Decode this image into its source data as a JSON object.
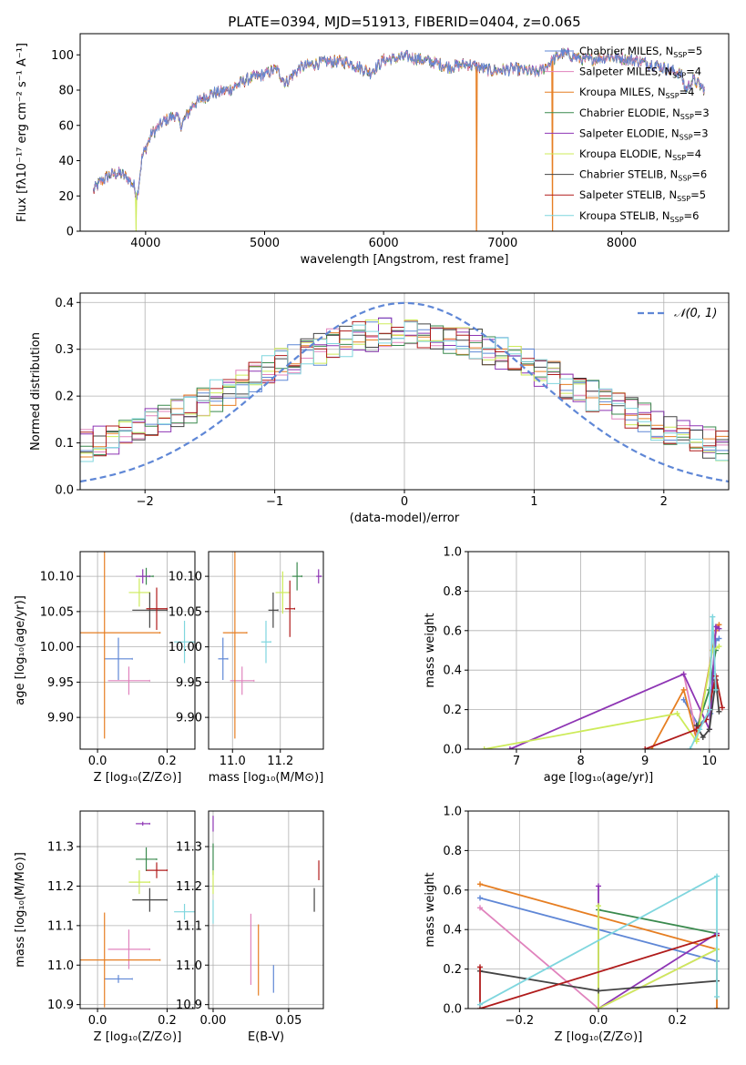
{
  "figure_title": "PLATE=0394, MJD=51913, FIBERID=0404, z=0.065",
  "colors": {
    "Chabrier MILES": "#5f87d6",
    "Salpeter MILES": "#e083bd",
    "Kroupa MILES": "#e67e22",
    "Chabrier ELODIE": "#3a8a4e",
    "Salpeter ELODIE": "#8e35b4",
    "Kroupa ELODIE": "#cdeb5a",
    "Chabrier STELIB": "#444444",
    "Salpeter STELIB": "#b01b1b",
    "Kroupa STELIB": "#7fd6de"
  },
  "chart_data": [
    {
      "id": "spectrum",
      "type": "line",
      "xlabel": "wavelength [Angstrom, rest frame]",
      "ylabel": "Flux [fλ10⁻¹⁷ erg cm⁻² s⁻¹ A⁻¹]",
      "xlim": [
        3450,
        8900
      ],
      "ylim": [
        0,
        112
      ],
      "xticks": [
        4000,
        5000,
        6000,
        7000,
        8000
      ],
      "yticks": [
        0,
        20,
        40,
        60,
        80,
        100
      ],
      "grid": false,
      "legend": "top-right",
      "continuum": [
        [
          3550,
          22
        ],
        [
          3620,
          28
        ],
        [
          3700,
          32
        ],
        [
          3780,
          33
        ],
        [
          3850,
          30
        ],
        [
          3900,
          26
        ],
        [
          3930,
          20
        ],
        [
          3970,
          42
        ],
        [
          4050,
          55
        ],
        [
          4150,
          62
        ],
        [
          4250,
          66
        ],
        [
          4300,
          60
        ],
        [
          4400,
          72
        ],
        [
          4550,
          78
        ],
        [
          4700,
          80
        ],
        [
          4850,
          86
        ],
        [
          5000,
          89
        ],
        [
          5100,
          92
        ],
        [
          5175,
          84
        ],
        [
          5300,
          93
        ],
        [
          5500,
          96
        ],
        [
          5700,
          96
        ],
        [
          5890,
          90
        ],
        [
          6000,
          97
        ],
        [
          6200,
          99
        ],
        [
          6400,
          96
        ],
        [
          6560,
          93
        ],
        [
          6700,
          95
        ],
        [
          6900,
          91
        ],
        [
          7100,
          92
        ],
        [
          7300,
          90
        ],
        [
          7500,
          101
        ],
        [
          7700,
          97
        ],
        [
          7900,
          99
        ],
        [
          8100,
          97
        ],
        [
          8300,
          94
        ],
        [
          8500,
          89
        ],
        [
          8540,
          80
        ],
        [
          8600,
          86
        ],
        [
          8700,
          80
        ]
      ],
      "series": [
        {
          "name": "Chabrier MILES",
          "nssp": "5"
        },
        {
          "name": "Salpeter MILES",
          "nssp": "4"
        },
        {
          "name": "Kroupa MILES",
          "nssp": "4"
        },
        {
          "name": "Chabrier ELODIE",
          "nssp": "3"
        },
        {
          "name": "Salpeter ELODIE",
          "nssp": "3"
        },
        {
          "name": "Kroupa ELODIE",
          "nssp": "4"
        },
        {
          "name": "Chabrier STELIB",
          "nssp": "6"
        },
        {
          "name": "Salpeter STELIB",
          "nssp": "5"
        },
        {
          "name": "Kroupa STELIB",
          "nssp": "6"
        }
      ],
      "dropouts": [
        {
          "name": "Kroupa ELODIE",
          "x": 3920
        },
        {
          "name": "Kroupa MILES",
          "x": 6780
        },
        {
          "name": "Kroupa MILES",
          "x": 7420
        }
      ]
    },
    {
      "id": "residuals",
      "type": "step",
      "xlabel": "(data-model)/error",
      "ylabel": "Normed distribution",
      "xlim": [
        -2.5,
        2.5
      ],
      "ylim": [
        0,
        0.42
      ],
      "xticks": [
        -2,
        -1,
        0,
        1,
        2
      ],
      "yticks": [
        0.0,
        0.1,
        0.2,
        0.3,
        0.4
      ],
      "grid": true,
      "legend": "top-right",
      "normal_label": "𝒩(0, 1)",
      "normal_color": "#5f87d6",
      "bins": 50
    },
    {
      "id": "age_vs_Z",
      "type": "errorbar",
      "xlabel": "Z [log₁₀(Z/Z⊙)]",
      "ylabel": "age  [log₁₀(age/yr)]",
      "xlim": [
        -0.05,
        0.28
      ],
      "ylim": [
        9.855,
        10.135
      ],
      "xticks": [
        0.0,
        0.2
      ],
      "yticks": [
        9.9,
        9.95,
        10.0,
        10.05,
        10.1
      ],
      "grid": true,
      "points": [
        {
          "name": "Chabrier MILES",
          "x": 0.06,
          "y": 9.983,
          "xerr": 0.04,
          "yerr": 0.03
        },
        {
          "name": "Salpeter MILES",
          "x": 0.09,
          "y": 9.952,
          "xerr": 0.06,
          "yerr": 0.02
        },
        {
          "name": "Kroupa MILES",
          "x": 0.02,
          "y": 10.02,
          "xerr": 0.16,
          "yerr": 0.15
        },
        {
          "name": "Chabrier ELODIE",
          "x": 0.14,
          "y": 10.1,
          "xerr": 0.02,
          "yerr": 0.012
        },
        {
          "name": "Salpeter ELODIE",
          "x": 0.13,
          "y": 10.1,
          "xerr": 0.02,
          "yerr": 0.01
        },
        {
          "name": "Kroupa ELODIE",
          "x": 0.12,
          "y": 10.077,
          "xerr": 0.03,
          "yerr": 0.02
        },
        {
          "name": "Chabrier STELIB",
          "x": 0.15,
          "y": 10.052,
          "xerr": 0.05,
          "yerr": 0.025
        },
        {
          "name": "Salpeter STELIB",
          "x": 0.17,
          "y": 10.054,
          "xerr": 0.03,
          "yerr": 0.03
        },
        {
          "name": "Kroupa STELIB",
          "x": 0.25,
          "y": 10.007,
          "xerr": 0.03,
          "yerr": 0.03
        }
      ]
    },
    {
      "id": "age_vs_mass",
      "type": "errorbar",
      "xlabel": "mass [log₁₀(M/M⊙)]",
      "ylabel": "",
      "xlim": [
        10.9,
        11.38
      ],
      "ylim": [
        9.855,
        10.135
      ],
      "xticks": [
        11.0,
        11.2
      ],
      "yticks": [
        9.9,
        9.95,
        10.0,
        10.05,
        10.1
      ],
      "grid": true,
      "points": [
        {
          "name": "Chabrier MILES",
          "x": 10.96,
          "y": 9.983,
          "xerr": 0.02,
          "yerr": 0.03
        },
        {
          "name": "Salpeter MILES",
          "x": 11.04,
          "y": 9.952,
          "xerr": 0.05,
          "yerr": 0.02
        },
        {
          "name": "Kroupa MILES",
          "x": 11.01,
          "y": 10.02,
          "xerr": 0.05,
          "yerr": 0.15
        },
        {
          "name": "Chabrier ELODIE",
          "x": 11.27,
          "y": 10.1,
          "xerr": 0.02,
          "yerr": 0.02
        },
        {
          "name": "Salpeter ELODIE",
          "x": 11.36,
          "y": 10.1,
          "xerr": 0.01,
          "yerr": 0.01
        },
        {
          "name": "Kroupa ELODIE",
          "x": 11.21,
          "y": 10.077,
          "xerr": 0.03,
          "yerr": 0.03
        },
        {
          "name": "Chabrier STELIB",
          "x": 11.17,
          "y": 10.052,
          "xerr": 0.02,
          "yerr": 0.025
        },
        {
          "name": "Salpeter STELIB",
          "x": 11.24,
          "y": 10.054,
          "xerr": 0.02,
          "yerr": 0.04
        },
        {
          "name": "Kroupa STELIB",
          "x": 11.14,
          "y": 10.007,
          "xerr": 0.02,
          "yerr": 0.03
        }
      ]
    },
    {
      "id": "weight_vs_age",
      "type": "line",
      "xlabel": "age  [log₁₀(age/yr)]",
      "ylabel": "mass weight",
      "xlim": [
        6.25,
        10.3
      ],
      "ylim": [
        0,
        1.0
      ],
      "xticks": [
        7,
        8,
        9,
        10
      ],
      "yticks": [
        0.0,
        0.2,
        0.4,
        0.6,
        0.8,
        1.0
      ],
      "grid": true,
      "series": [
        {
          "name": "Chabrier MILES",
          "x": [
            9.6,
            9.83,
            10.02,
            10.1,
            10.15
          ],
          "y": [
            0.25,
            0.12,
            0.18,
            0.55,
            0.56
          ]
        },
        {
          "name": "Salpeter MILES",
          "x": [
            9.6,
            9.8,
            10.05,
            10.12
          ],
          "y": [
            0.38,
            0.08,
            0.5,
            0.62
          ]
        },
        {
          "name": "Kroupa MILES",
          "x": [
            9.1,
            9.6,
            9.8,
            10.1,
            10.15
          ],
          "y": [
            0.0,
            0.3,
            0.05,
            0.6,
            0.63
          ]
        },
        {
          "name": "Chabrier ELODIE",
          "x": [
            9.8,
            10.0,
            10.1
          ],
          "y": [
            0.1,
            0.3,
            0.5
          ]
        },
        {
          "name": "Salpeter ELODIE",
          "x": [
            6.9,
            9.6,
            10.0,
            10.1,
            10.15
          ],
          "y": [
            0.0,
            0.38,
            0.1,
            0.62,
            0.61
          ]
        },
        {
          "name": "Kroupa ELODIE",
          "x": [
            6.5,
            9.5,
            9.8,
            10.05,
            10.15
          ],
          "y": [
            0.0,
            0.18,
            0.04,
            0.5,
            0.52
          ]
        },
        {
          "name": "Chabrier STELIB",
          "x": [
            9.8,
            9.9,
            10.0,
            10.1,
            10.15
          ],
          "y": [
            0.12,
            0.06,
            0.1,
            0.35,
            0.19
          ]
        },
        {
          "name": "Salpeter STELIB",
          "x": [
            9.0,
            9.8,
            9.95,
            10.1,
            10.2
          ],
          "y": [
            0.0,
            0.1,
            0.15,
            0.37,
            0.21
          ]
        },
        {
          "name": "Kroupa STELIB",
          "x": [
            9.7,
            9.85,
            10.0,
            10.05,
            10.1
          ],
          "y": [
            0.0,
            0.1,
            0.2,
            0.67,
            0.3
          ]
        }
      ]
    },
    {
      "id": "mass_vs_Z",
      "type": "errorbar",
      "xlabel": "Z [log₁₀(Z/Z⊙)]",
      "ylabel": "mass [log₁₀(M/M⊙)]",
      "xlim": [
        -0.05,
        0.28
      ],
      "ylim": [
        10.89,
        11.39
      ],
      "xticks": [
        0.0,
        0.2
      ],
      "yticks": [
        10.9,
        11.0,
        11.1,
        11.2,
        11.3
      ],
      "grid": true,
      "points": [
        {
          "name": "Chabrier MILES",
          "x": 0.06,
          "y": 10.965,
          "xerr": 0.04,
          "yerr": 0.01
        },
        {
          "name": "Salpeter MILES",
          "x": 0.09,
          "y": 11.04,
          "xerr": 0.06,
          "yerr": 0.05
        },
        {
          "name": "Kroupa MILES",
          "x": 0.02,
          "y": 11.013,
          "xerr": 0.16,
          "yerr": 0.12
        },
        {
          "name": "Chabrier ELODIE",
          "x": 0.14,
          "y": 11.268,
          "xerr": 0.03,
          "yerr": 0.03
        },
        {
          "name": "Salpeter ELODIE",
          "x": 0.13,
          "y": 11.358,
          "xerr": 0.02,
          "yerr": 0.005
        },
        {
          "name": "Kroupa ELODIE",
          "x": 0.12,
          "y": 11.21,
          "xerr": 0.03,
          "yerr": 0.03
        },
        {
          "name": "Chabrier STELIB",
          "x": 0.15,
          "y": 11.165,
          "xerr": 0.05,
          "yerr": 0.03
        },
        {
          "name": "Salpeter STELIB",
          "x": 0.17,
          "y": 11.24,
          "xerr": 0.03,
          "yerr": 0.02
        },
        {
          "name": "Kroupa STELIB",
          "x": 0.25,
          "y": 11.135,
          "xerr": 0.03,
          "yerr": 0.02
        }
      ]
    },
    {
      "id": "mass_vs_ebv",
      "type": "errorbar",
      "xlabel": "E(B-V)",
      "ylabel": "",
      "xlim": [
        -0.003,
        0.073
      ],
      "ylim": [
        10.89,
        11.39
      ],
      "xticks": [
        0.0,
        0.05
      ],
      "yticks": [
        10.9,
        11.0,
        11.1,
        11.2,
        11.3
      ],
      "grid": true,
      "points": [
        {
          "name": "Chabrier MILES",
          "x": 0.04,
          "y": 10.965,
          "xerr": 0.0,
          "yerr": 0.035
        },
        {
          "name": "Salpeter MILES",
          "x": 0.025,
          "y": 11.04,
          "xerr": 0.0,
          "yerr": 0.09
        },
        {
          "name": "Kroupa MILES",
          "x": 0.03,
          "y": 11.013,
          "xerr": 0.0,
          "yerr": 0.09
        },
        {
          "name": "Chabrier ELODIE",
          "x": 0.0,
          "y": 11.268,
          "xerr": 0.0,
          "yerr": 0.04
        },
        {
          "name": "Salpeter ELODIE",
          "x": 0.0,
          "y": 11.358,
          "xerr": 0.0,
          "yerr": 0.02
        },
        {
          "name": "Kroupa ELODIE",
          "x": 0.0,
          "y": 11.21,
          "xerr": 0.0,
          "yerr": 0.03
        },
        {
          "name": "Chabrier STELIB",
          "x": 0.067,
          "y": 11.165,
          "xerr": 0.0,
          "yerr": 0.03
        },
        {
          "name": "Salpeter STELIB",
          "x": 0.07,
          "y": 11.24,
          "xerr": 0.0,
          "yerr": 0.025
        },
        {
          "name": "Kroupa STELIB",
          "x": 0.0,
          "y": 11.135,
          "xerr": 0.0,
          "yerr": 0.03
        }
      ]
    },
    {
      "id": "weight_vs_Z",
      "type": "line",
      "xlabel": "Z [log₁₀(Z/Z⊙)]",
      "ylabel": "mass weight",
      "xlim": [
        -0.33,
        0.33
      ],
      "ylim": [
        0,
        1.0
      ],
      "xticks": [
        -0.2,
        0.0,
        0.2
      ],
      "yticks": [
        0.0,
        0.2,
        0.4,
        0.6,
        0.8,
        1.0
      ],
      "grid": true,
      "series": [
        {
          "name": "Chabrier MILES",
          "x": [
            -0.3,
            0.3,
            0.3
          ],
          "y": [
            0.56,
            0.24,
            0.0
          ]
        },
        {
          "name": "Salpeter MILES",
          "x": [
            -0.3,
            0.0,
            0.3
          ],
          "y": [
            0.51,
            0.0,
            0.3
          ]
        },
        {
          "name": "Kroupa MILES",
          "x": [
            -0.3,
            0.3,
            0.3
          ],
          "y": [
            0.63,
            0.3,
            0.0
          ]
        },
        {
          "name": "Chabrier ELODIE",
          "x": [
            0.0,
            0.3
          ],
          "y": [
            0.5,
            0.38
          ]
        },
        {
          "name": "Salpeter ELODIE",
          "x": [
            0.0,
            0.0,
            0.3
          ],
          "y": [
            0.62,
            0.0,
            0.38
          ]
        },
        {
          "name": "Kroupa ELODIE",
          "x": [
            0.0,
            0.0,
            0.3
          ],
          "y": [
            0.52,
            0.0,
            0.3
          ]
        },
        {
          "name": "Chabrier STELIB",
          "x": [
            -0.3,
            0.0,
            0.3
          ],
          "y": [
            0.19,
            0.09,
            0.14
          ]
        },
        {
          "name": "Salpeter STELIB",
          "x": [
            -0.3,
            -0.3,
            0.3
          ],
          "y": [
            0.21,
            0.0,
            0.37
          ]
        },
        {
          "name": "Kroupa STELIB",
          "x": [
            -0.3,
            0.3,
            0.3
          ],
          "y": [
            0.02,
            0.67,
            0.06
          ]
        }
      ]
    }
  ]
}
